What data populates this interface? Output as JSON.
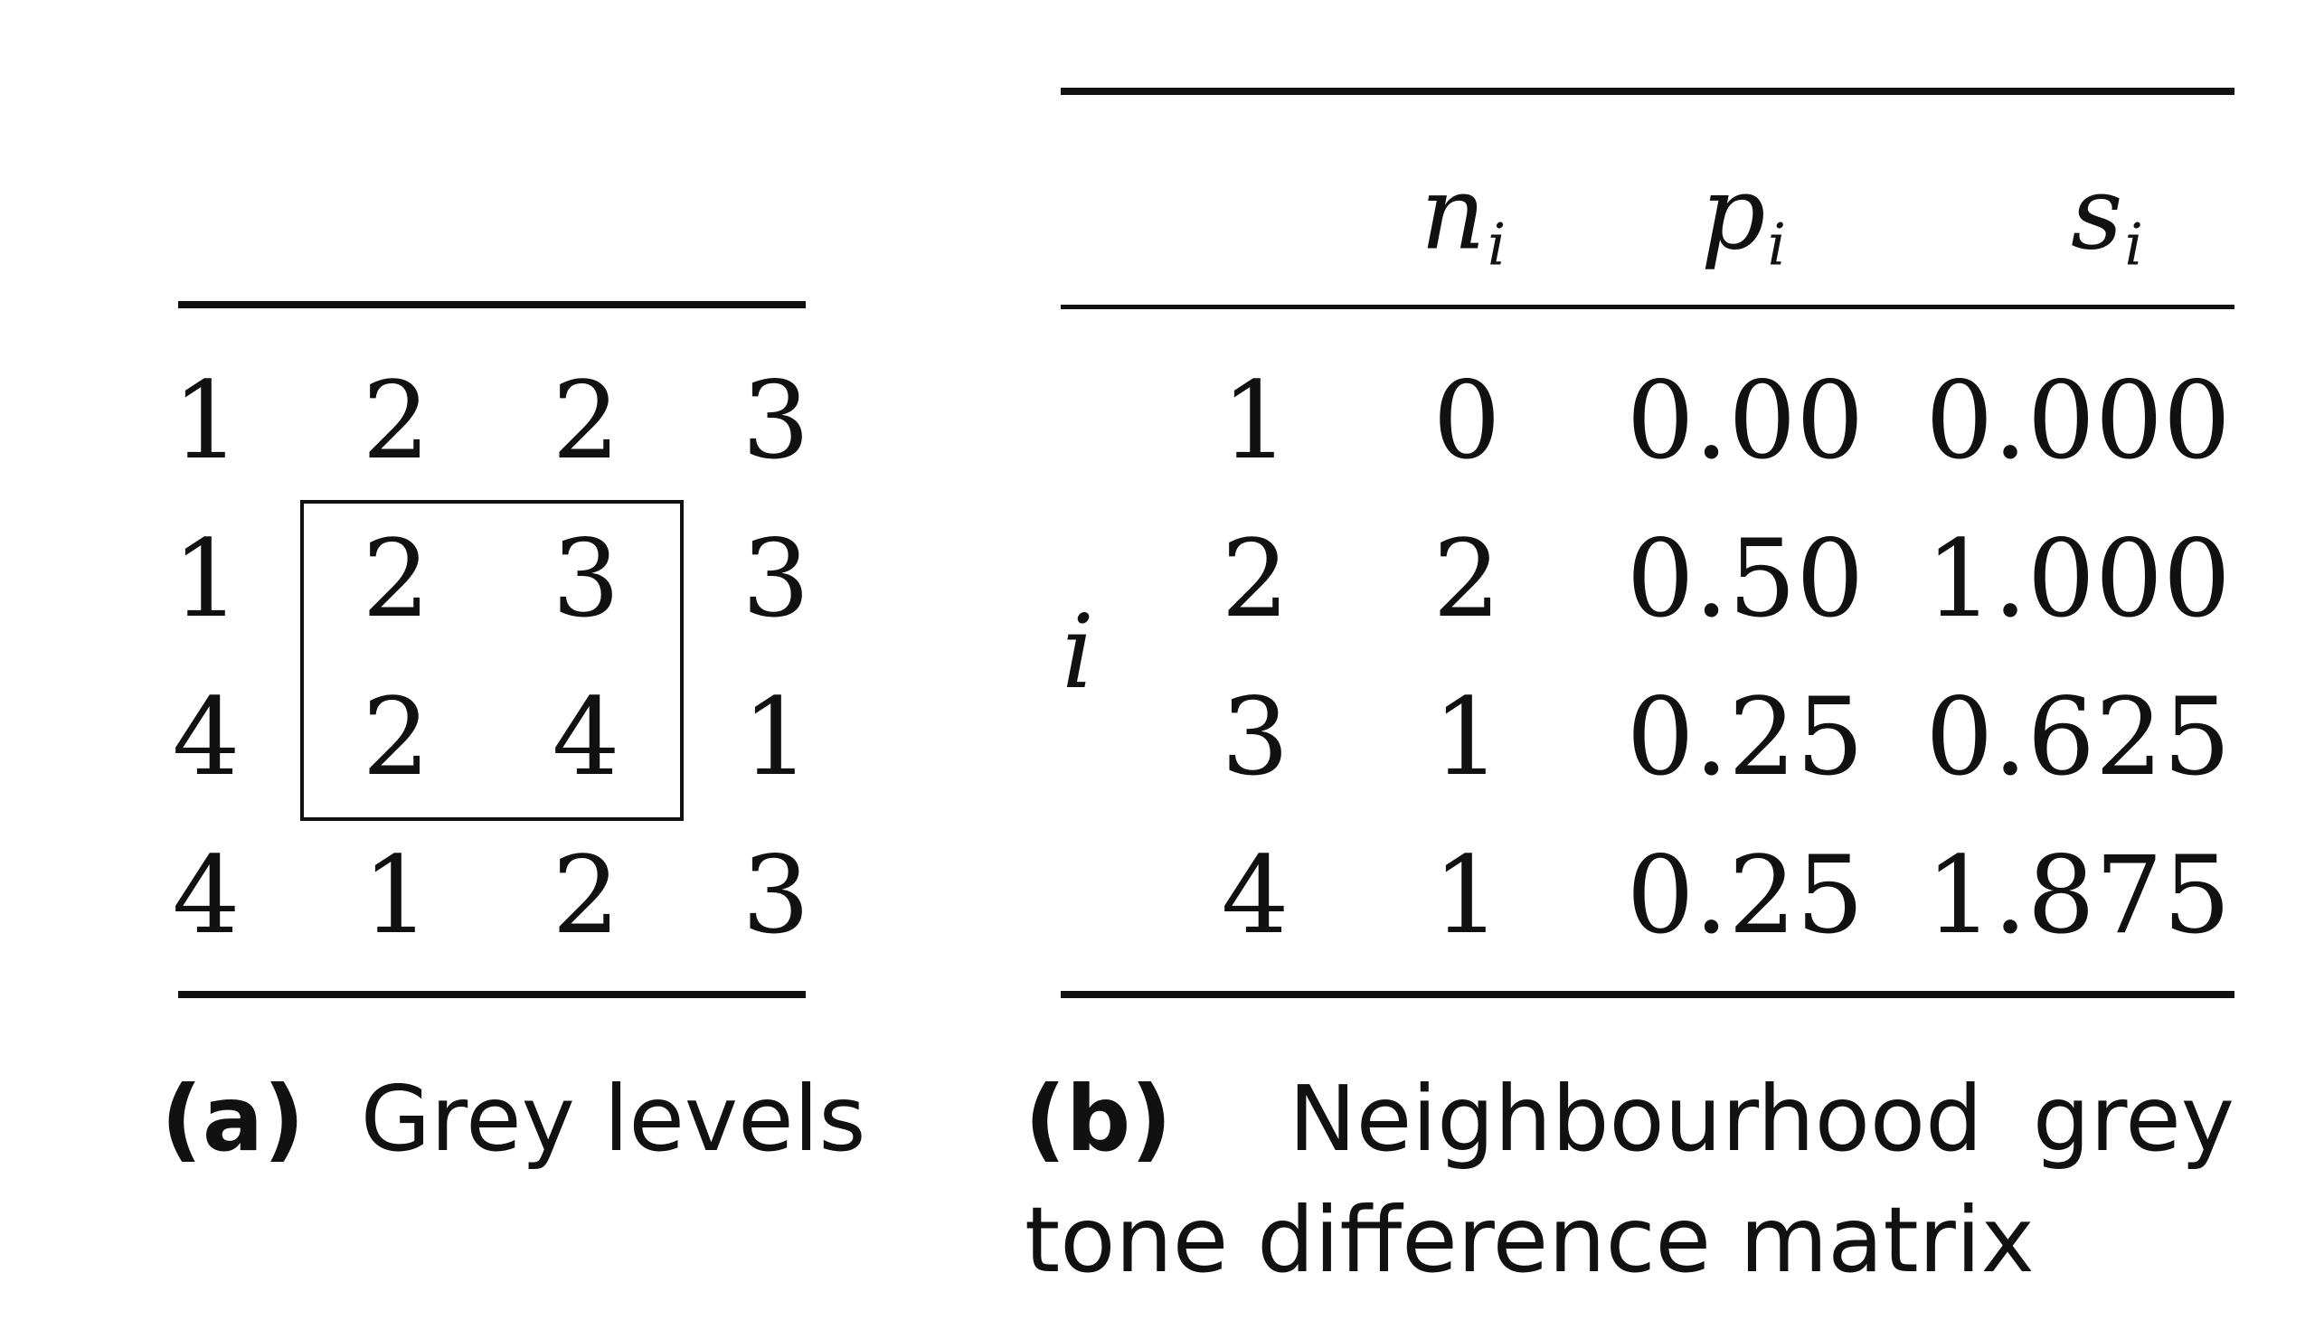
{
  "grey_levels": {
    "rows": [
      [
        "1",
        "2",
        "2",
        "3"
      ],
      [
        "1",
        "2",
        "3",
        "3"
      ],
      [
        "4",
        "2",
        "4",
        "1"
      ],
      [
        "4",
        "1",
        "2",
        "3"
      ]
    ],
    "caption_label": "(a)",
    "caption_text": "Grey levels"
  },
  "ngtdm": {
    "row_header": "i",
    "columns": [
      {
        "base": "n",
        "sub": "i"
      },
      {
        "base": "p",
        "sub": "i"
      },
      {
        "base": "s",
        "sub": "i"
      }
    ],
    "rows": [
      {
        "i": "1",
        "n": "0",
        "p": "0.00",
        "s": "0.000"
      },
      {
        "i": "2",
        "n": "2",
        "p": "0.50",
        "s": "1.000"
      },
      {
        "i": "3",
        "n": "1",
        "p": "0.25",
        "s": "0.625"
      },
      {
        "i": "4",
        "n": "1",
        "p": "0.25",
        "s": "1.875"
      }
    ],
    "caption_label": "(b)",
    "caption_line1": "Neighbourhood",
    "caption_line1_end": "grey",
    "caption_line2": "tone difference matrix"
  }
}
